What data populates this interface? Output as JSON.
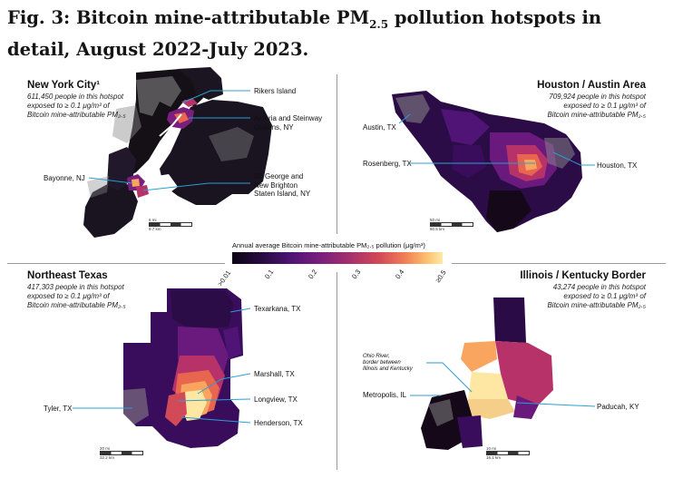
{
  "figure": {
    "title_prefix": "Fig. 3: Bitcoin mine-attributable PM",
    "title_sub": "2.5",
    "title_suffix": " pollution hotspots in detail, August 2022-July 2023."
  },
  "legend": {
    "title": "Annual average Bitcoin mine-attributable PM₂.₅ pollution (μg/m³)",
    "ticks": [
      ">0.01",
      "0.1",
      "0.2",
      "0.3",
      "0.4",
      "≥0.5"
    ]
  },
  "panels": {
    "nyc": {
      "title": "New York City¹",
      "subtitle_line1": "611,450 people in this hotspot",
      "subtitle_line2": "exposed to ≥ 0.1 μg/m³ of",
      "subtitle_line3": "Bitcoin mine-attributable PM₂.₅",
      "callouts": {
        "rikers": "Rikers Island",
        "astoria_1": "Astoria and Steinway",
        "astoria_2": "Queens, NY",
        "bayonne": "Bayonne, NJ",
        "staten_1": "St. George and",
        "staten_2": "New Brighton",
        "staten_3": "Staten Island, NY"
      },
      "scale": {
        "mi": "6 mi",
        "km": "9.7 km"
      }
    },
    "houston": {
      "title": "Houston / Austin Area",
      "subtitle_line1": "709,924 people in this hotspot",
      "subtitle_line2": "exposed to ≥ 0.1 μg/m³ of",
      "subtitle_line3": "Bitcoin mine-attributable PM₂.₅",
      "callouts": {
        "austin": "Austin, TX",
        "rosenberg": "Rosenberg, TX",
        "houston": "Houston, TX"
      },
      "scale": {
        "mi": "50 mi",
        "km": "80.5 km"
      }
    },
    "netexas": {
      "title": "Northeast Texas",
      "subtitle_line1": "417,303 people in this hotspot",
      "subtitle_line2": "exposed to ≥ 0.1 μg/m³ of",
      "subtitle_line3": "Bitcoin mine-attributable PM₂.₅",
      "callouts": {
        "texarkana": "Texarkana, TX",
        "marshall": "Marshall, TX",
        "tyler": "Tyler, TX",
        "longview": "Longview, TX",
        "henderson": "Henderson, TX"
      },
      "scale": {
        "mi": "20 mi",
        "km": "32.2 km"
      }
    },
    "ilky": {
      "title": "Illinois / Kentucky Border",
      "subtitle_line1": "43,274 people in this hotspot",
      "subtitle_line2": "exposed to ≥ 0.1 μg/m³ of",
      "subtitle_line3": "Bitcoin mine-attributable PM₂.₅",
      "callouts": {
        "ohio_1": "Ohio River,",
        "ohio_2": "border between",
        "ohio_3": "Illinois and Kentucky",
        "metropolis": "Metropolis, IL",
        "paducah": "Paducah, KY"
      },
      "scale": {
        "mi": "10 mi",
        "km": "16.1 km"
      }
    }
  },
  "colors": {
    "zero": "#0b0414",
    "low": "#3a0d5c",
    "mid": "#7a1f7d",
    "midhigh": "#b8326a",
    "high": "#e8654f",
    "veryhigh": "#f9a45f",
    "max": "#fde7a3",
    "urban_gray": "#9a9a9a",
    "callout_line": "#2a9fd6"
  }
}
